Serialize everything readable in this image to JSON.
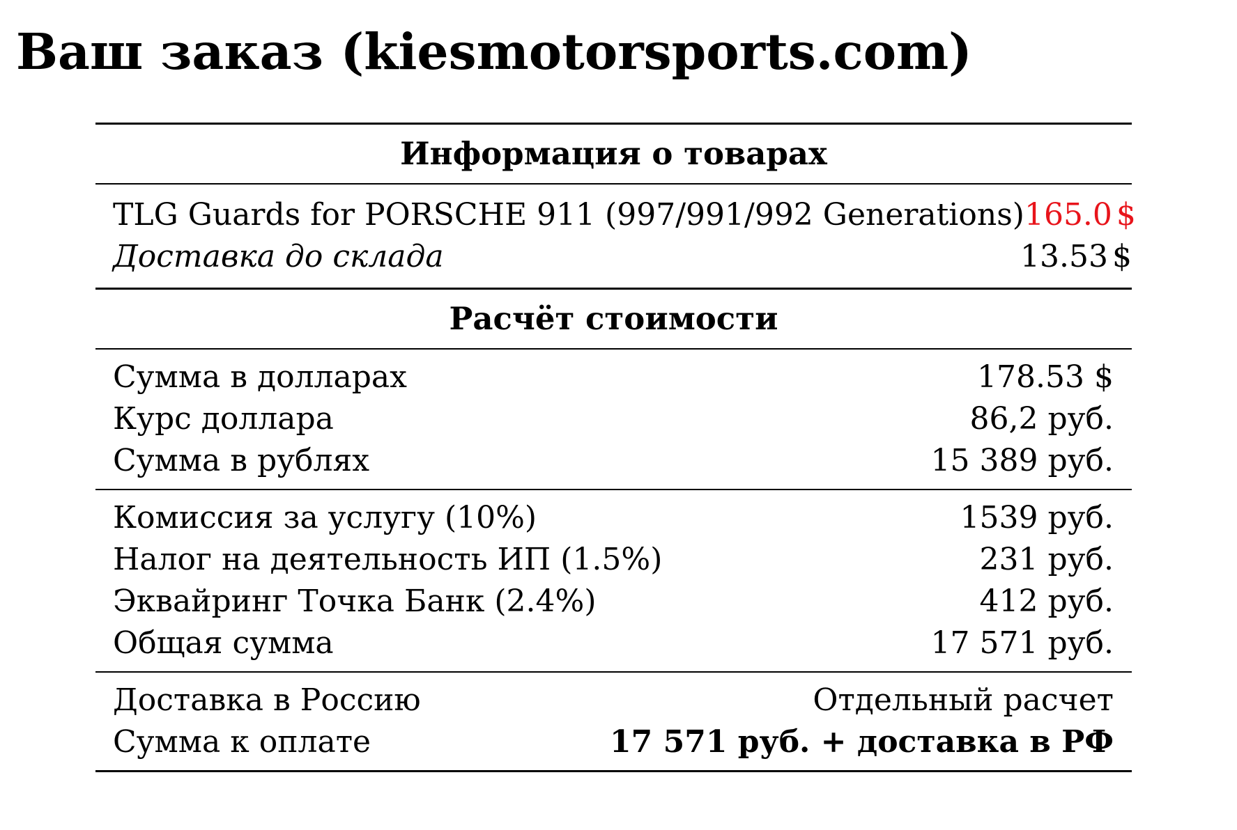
{
  "title": "Ваш заказ (kiesmotorsports.com)",
  "accent_color": "#e8141b",
  "items_section": {
    "heading": "Информация о товарах",
    "items": [
      {
        "name": "TLG Guards for PORSCHE 911 (997/991/992 Generations)",
        "price": "165.0",
        "currency": "$"
      },
      {
        "name": "Доставка до склада",
        "price": "13.53",
        "currency": "$"
      }
    ]
  },
  "calc_section": {
    "heading": "Расчёт стоимости",
    "conversion": [
      {
        "label": "Сумма в долларах",
        "value": "178.53 $"
      },
      {
        "label": "Курс доллара",
        "value": "86,2 руб."
      },
      {
        "label": "Сумма в рублях",
        "value": "15 389 руб."
      }
    ],
    "fees": [
      {
        "label": "Комиссия за услугу (10%)",
        "value": "1539 руб."
      },
      {
        "label": "Налог на деятельность ИП (1.5%)",
        "value": "231 руб."
      },
      {
        "label": "Эквайринг Точка Банк (2.4%)",
        "value": "412 руб."
      },
      {
        "label": "Общая сумма",
        "value": "17 571 руб."
      }
    ],
    "final": [
      {
        "label": "Доставка в Россию",
        "value": "Отдельный расчет"
      },
      {
        "label": "Сумма к оплате",
        "value": "17 571 руб. + доставка в РФ"
      }
    ]
  }
}
